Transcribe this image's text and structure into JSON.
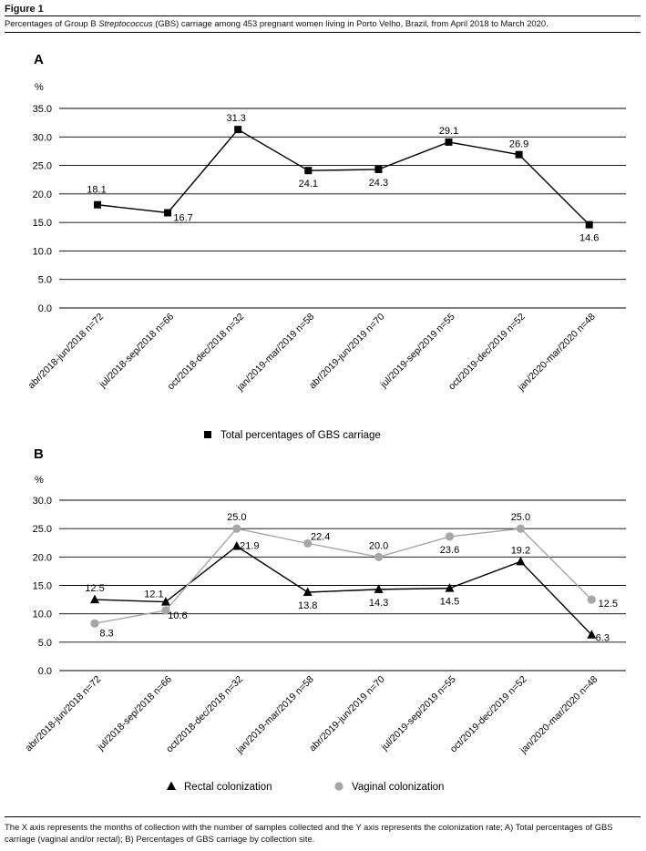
{
  "figure": {
    "label": "Figure 1",
    "caption_pre": "Percentages of Group B ",
    "caption_italic": "Streptococcus",
    "caption_post": " (GBS) carriage among 453 pregnant women living in Porto Velho, Brazil, from April 2018 to March 2020.",
    "footnote": "The X axis represents the months of collection with the number of samples collected and the Y axis represents the colonization rate; A) Total percentages of GBS carriage (vaginal and/or rectal); B) Percentages of GBS carriage by collection site."
  },
  "chart_data": [
    {
      "panel": "A",
      "type": "line",
      "ylabel": "%",
      "ylim": [
        0,
        35
      ],
      "yticks": [
        "0.0",
        "5.0",
        "10.0",
        "15.0",
        "20.0",
        "25.0",
        "30.0",
        "35.0"
      ],
      "grid": true,
      "legend_position": "bottom",
      "categories": [
        "abr/2018-jun/2018 n=72",
        "jul/2018-sep/2018 n=66",
        "oct/2018-dec/2018 n=32",
        "jan/2019-mar/2019 n=58",
        "abr/2019-jun/2019 n=70",
        "jul/2019-sep/2019 n=55",
        "oct/2019-dec/2019 n=52",
        "jan/2020-mar/2020 n=48"
      ],
      "series": [
        {
          "name": "Total percentages of GBS carriage",
          "color": "#000000",
          "marker": "square",
          "values": [
            18.1,
            16.7,
            31.3,
            24.1,
            24.3,
            29.1,
            26.9,
            14.6
          ],
          "labels": [
            "18.1",
            "16.7",
            "31.3",
            "24.1",
            "24.3",
            "29.1",
            "26.9",
            "14.6"
          ]
        }
      ]
    },
    {
      "panel": "B",
      "type": "line",
      "ylabel": "%",
      "ylim": [
        0,
        30
      ],
      "yticks": [
        "0.0",
        "5.0",
        "10.0",
        "15.0",
        "20.0",
        "25.0",
        "30.0"
      ],
      "grid": true,
      "legend_position": "bottom",
      "categories": [
        "abr/2018-jun/2018 n=72",
        "jul/2018-sep/2018 n=66",
        "oct/2018-dec/2018 n=32",
        "jan/2019-mar/2019 n=58",
        "abr/2019-jun/2019 n=70",
        "jul/2019-sep/2019 n=55",
        "oct/2019-dec/2019 n=52",
        "jan/2020-mar/2020 n=48"
      ],
      "series": [
        {
          "name": "Rectal colonization",
          "color": "#000000",
          "marker": "triangle",
          "values": [
            12.5,
            12.1,
            21.9,
            13.8,
            14.3,
            14.5,
            19.2,
            6.3
          ],
          "labels": [
            "12.5",
            "12.1",
            "21.9",
            "13.8",
            "14.3",
            "14.5",
            "19.2",
            "6.3"
          ]
        },
        {
          "name": "Vaginal colonization",
          "color": "#a6a6a6",
          "marker": "circle",
          "values": [
            8.3,
            10.6,
            25.0,
            22.4,
            20.0,
            23.6,
            25.0,
            12.5
          ],
          "labels": [
            "8.3",
            "10.6",
            "25.0",
            "22.4",
            "20.0",
            "23.6",
            "25.0",
            "12.5"
          ]
        }
      ]
    }
  ]
}
